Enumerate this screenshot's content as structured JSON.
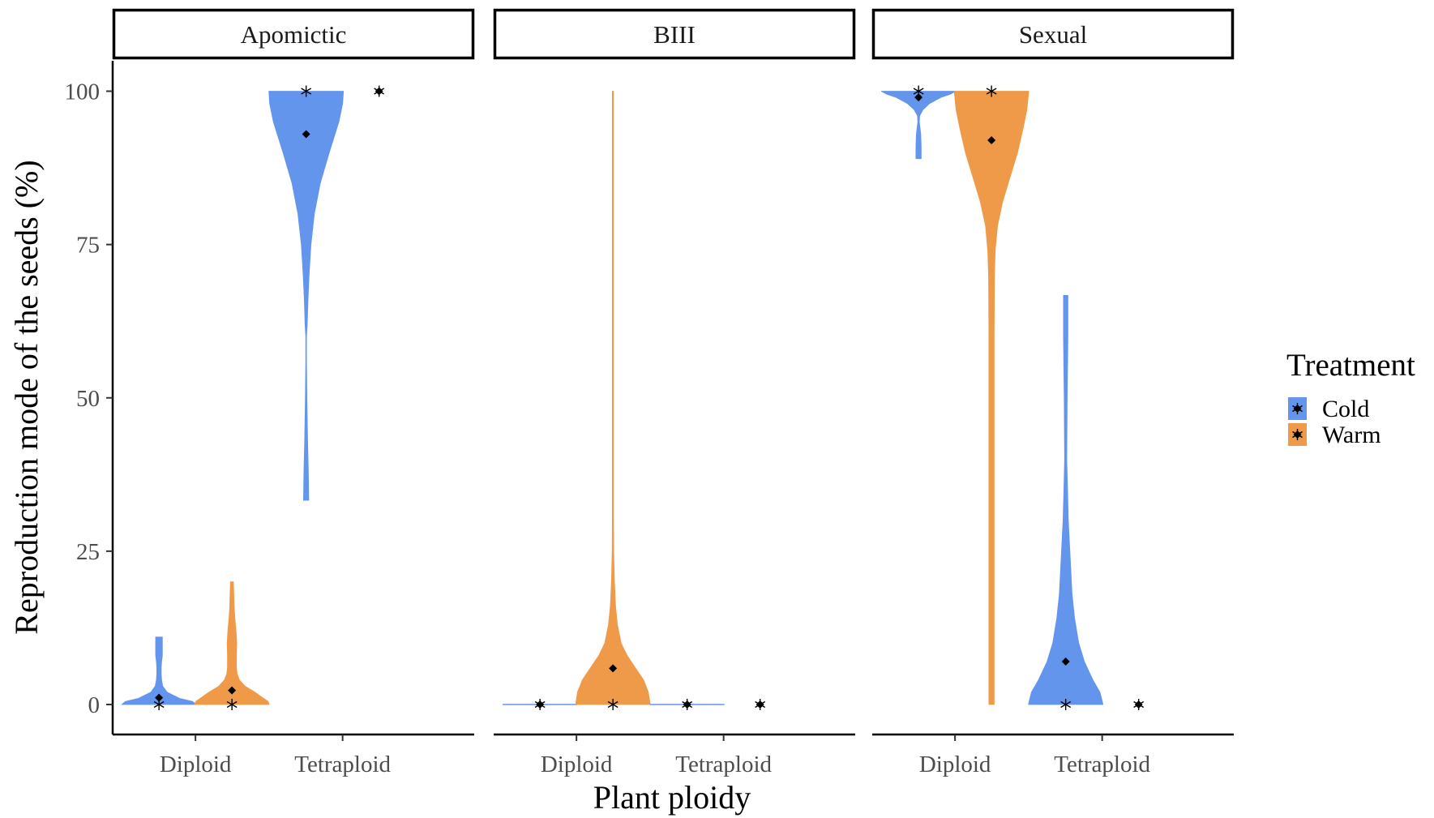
{
  "chart_data": {
    "type": "violin",
    "facets": [
      "Apomictic",
      "BIII",
      "Sexual"
    ],
    "categories": [
      "Diploid",
      "Tetraploid"
    ],
    "xlabel": "Plant ploidy",
    "ylabel": "Reproduction mode of the seeds (%)",
    "yticks": [
      "0",
      "25",
      "50",
      "75",
      "100"
    ],
    "ylim": [
      -5,
      105
    ],
    "legend": {
      "title": "Treatment",
      "placement": "right",
      "items": [
        {
          "label": "Cold",
          "color": "#6495ED"
        },
        {
          "label": "Warm",
          "color": "#EE9A49"
        }
      ]
    },
    "violins": [
      {
        "facet": "Apomictic",
        "category": "Diploid",
        "treatment": "Cold",
        "ymin": 0,
        "ymax": 11,
        "mean": 1.1,
        "median": 0,
        "profile": [
          [
            0,
            1.0
          ],
          [
            0.5,
            0.9
          ],
          [
            1,
            0.55
          ],
          [
            2,
            0.22
          ],
          [
            3,
            0.1
          ],
          [
            4,
            0.07
          ],
          [
            5,
            0.06
          ],
          [
            6,
            0.06
          ],
          [
            7,
            0.07
          ],
          [
            8,
            0.09
          ],
          [
            9,
            0.09
          ],
          [
            10,
            0.09
          ],
          [
            11,
            0.09
          ]
        ]
      },
      {
        "facet": "Apomictic",
        "category": "Diploid",
        "treatment": "Warm",
        "ymin": 0,
        "ymax": 20,
        "mean": 2.3,
        "median": 0,
        "profile": [
          [
            0,
            1.0
          ],
          [
            0.5,
            0.97
          ],
          [
            1,
            0.85
          ],
          [
            2,
            0.62
          ],
          [
            3,
            0.35
          ],
          [
            4,
            0.2
          ],
          [
            5,
            0.14
          ],
          [
            6,
            0.12
          ],
          [
            8,
            0.12
          ],
          [
            10,
            0.13
          ],
          [
            12,
            0.11
          ],
          [
            14,
            0.08
          ],
          [
            16,
            0.06
          ],
          [
            18,
            0.05
          ],
          [
            20,
            0.04
          ]
        ]
      },
      {
        "facet": "Apomictic",
        "category": "Tetraploid",
        "treatment": "Cold",
        "ymin": 33.3,
        "ymax": 100,
        "mean": 93,
        "median": 100,
        "profile": [
          [
            33.3,
            0.07
          ],
          [
            38,
            0.06
          ],
          [
            43,
            0.04
          ],
          [
            50,
            0.02
          ],
          [
            56,
            0.01
          ],
          [
            60,
            0.01
          ],
          [
            62,
            0.03
          ],
          [
            66,
            0.05
          ],
          [
            70,
            0.08
          ],
          [
            75,
            0.13
          ],
          [
            80,
            0.22
          ],
          [
            85,
            0.38
          ],
          [
            90,
            0.62
          ],
          [
            95,
            0.88
          ],
          [
            98,
            0.98
          ],
          [
            100,
            1.0
          ]
        ]
      },
      {
        "facet": "BIII",
        "category": "Diploid",
        "treatment": "Cold",
        "ymin": 0,
        "ymax": 0,
        "mean": 0,
        "median": 0,
        "profile": []
      },
      {
        "facet": "BIII",
        "category": "Diploid",
        "treatment": "Warm",
        "ymin": 0,
        "ymax": 100,
        "mean": 5.9,
        "median": 0,
        "profile": [
          [
            0,
            1.0
          ],
          [
            2,
            0.95
          ],
          [
            4,
            0.82
          ],
          [
            6,
            0.6
          ],
          [
            8,
            0.38
          ],
          [
            10,
            0.22
          ],
          [
            13,
            0.12
          ],
          [
            16,
            0.07
          ],
          [
            20,
            0.04
          ],
          [
            25,
            0.02
          ],
          [
            30,
            0.015
          ],
          [
            40,
            0.015
          ],
          [
            60,
            0.015
          ],
          [
            80,
            0.015
          ],
          [
            100,
            0.015
          ]
        ]
      },
      {
        "facet": "BIII",
        "category": "Tetraploid",
        "treatment": "Cold",
        "ymin": 0,
        "ymax": 0,
        "mean": 0,
        "median": 0,
        "profile": []
      },
      {
        "facet": "Sexual",
        "category": "Diploid",
        "treatment": "Cold",
        "ymin": 89,
        "ymax": 100,
        "mean": 99,
        "median": 100,
        "profile": [
          [
            89,
            0.07
          ],
          [
            91,
            0.07
          ],
          [
            93,
            0.06
          ],
          [
            95,
            0.02
          ],
          [
            96,
            0.03
          ],
          [
            97,
            0.12
          ],
          [
            98,
            0.3
          ],
          [
            99,
            0.6
          ],
          [
            99.5,
            0.85
          ],
          [
            100,
            1.0
          ]
        ]
      },
      {
        "facet": "Sexual",
        "category": "Diploid",
        "treatment": "Warm",
        "ymin": 0,
        "ymax": 100,
        "mean": 92,
        "median": 100,
        "profile": [
          [
            0,
            0.07
          ],
          [
            10,
            0.07
          ],
          [
            30,
            0.07
          ],
          [
            50,
            0.07
          ],
          [
            60,
            0.07
          ],
          [
            70,
            0.08
          ],
          [
            74,
            0.1
          ],
          [
            78,
            0.16
          ],
          [
            82,
            0.3
          ],
          [
            86,
            0.5
          ],
          [
            90,
            0.7
          ],
          [
            94,
            0.85
          ],
          [
            97,
            0.95
          ],
          [
            100,
            1.0
          ]
        ]
      },
      {
        "facet": "Sexual",
        "category": "Tetraploid",
        "treatment": "Cold",
        "ymin": 0,
        "ymax": 66.7,
        "mean": 7,
        "median": 0,
        "profile": [
          [
            0,
            1.0
          ],
          [
            2,
            0.92
          ],
          [
            4,
            0.73
          ],
          [
            7,
            0.5
          ],
          [
            10,
            0.35
          ],
          [
            14,
            0.24
          ],
          [
            18,
            0.17
          ],
          [
            24,
            0.12
          ],
          [
            30,
            0.07
          ],
          [
            35,
            0.05
          ],
          [
            40,
            0.03
          ],
          [
            50,
            0.04
          ],
          [
            60,
            0.06
          ],
          [
            66.7,
            0.06
          ]
        ]
      }
    ],
    "points": [
      {
        "facet": "Apomictic",
        "category": "Diploid",
        "treatment": "Cold",
        "median": 0,
        "mean": 1.1
      },
      {
        "facet": "Apomictic",
        "category": "Diploid",
        "treatment": "Warm",
        "median": 0,
        "mean": 2.3
      },
      {
        "facet": "Apomictic",
        "category": "Tetraploid",
        "treatment": "Cold",
        "median": 100,
        "mean": 93
      },
      {
        "facet": "Apomictic",
        "category": "Tetraploid",
        "treatment": "Warm",
        "median": 100,
        "mean": 100
      },
      {
        "facet": "BIII",
        "category": "Diploid",
        "treatment": "Cold",
        "median": 0,
        "mean": 0
      },
      {
        "facet": "BIII",
        "category": "Diploid",
        "treatment": "Warm",
        "median": 0,
        "mean": 5.9
      },
      {
        "facet": "BIII",
        "category": "Tetraploid",
        "treatment": "Cold",
        "median": 0,
        "mean": 0
      },
      {
        "facet": "BIII",
        "category": "Tetraploid",
        "treatment": "Warm",
        "median": 0,
        "mean": 0
      },
      {
        "facet": "Sexual",
        "category": "Diploid",
        "treatment": "Cold",
        "median": 100,
        "mean": 99
      },
      {
        "facet": "Sexual",
        "category": "Diploid",
        "treatment": "Warm",
        "median": 100,
        "mean": 92
      },
      {
        "facet": "Sexual",
        "category": "Tetraploid",
        "treatment": "Cold",
        "median": 0,
        "mean": 7
      },
      {
        "facet": "Sexual",
        "category": "Tetraploid",
        "treatment": "Warm",
        "median": 0,
        "mean": 0
      }
    ]
  }
}
